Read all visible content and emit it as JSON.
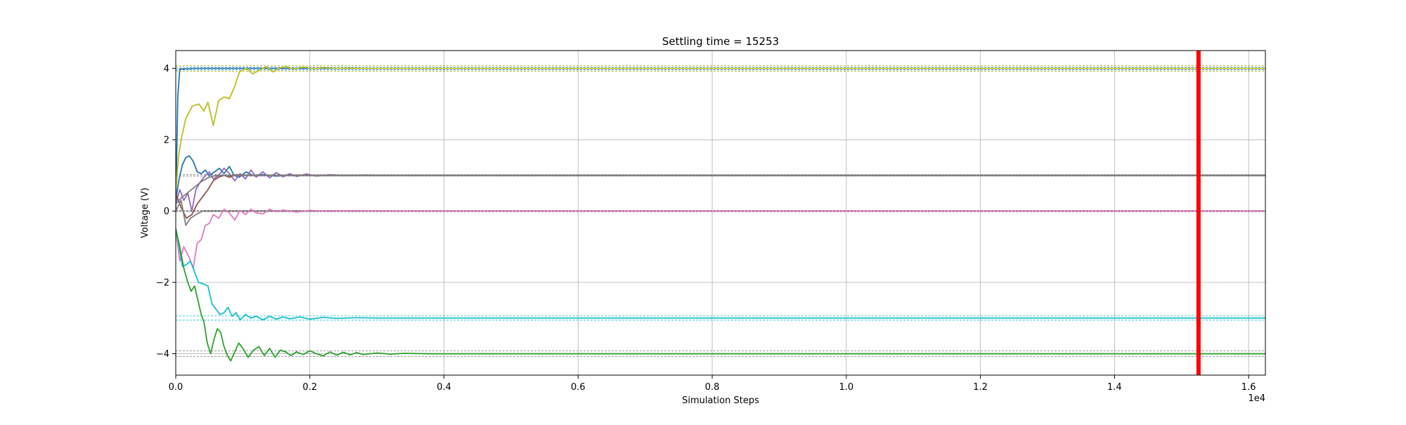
{
  "chart_data": {
    "type": "line",
    "title": "Settling time = 15253",
    "xlabel": "Simulation Steps",
    "ylabel": "Voltage (V)",
    "x_offset_text": "1e4",
    "xlim": [
      0,
      16250
    ],
    "ylim": [
      -4.6,
      4.5
    ],
    "x_ticks": [
      0,
      2000,
      4000,
      6000,
      8000,
      10000,
      12000,
      14000,
      16000
    ],
    "x_tick_labels": [
      "0.0",
      "0.2",
      "0.4",
      "0.6",
      "0.8",
      "1.0",
      "1.2",
      "1.4",
      "1.6"
    ],
    "y_ticks": [
      -4,
      -2,
      0,
      2,
      4
    ],
    "y_tick_labels": [
      "−4",
      "−2",
      "0",
      "2",
      "4"
    ],
    "grid": true,
    "settling_time": 15253,
    "settling_marker_color": "#ff0000",
    "tolerance_bands": [
      {
        "target": 4,
        "band": [
          3.92,
          4.08
        ],
        "color": "#bcbd22"
      },
      {
        "target": 4,
        "band": [
          3.96,
          4.04
        ],
        "color": "#1f77b4"
      },
      {
        "target": 1,
        "band": [
          0.98,
          1.02
        ],
        "color": "#7f7f7f"
      },
      {
        "target": 0,
        "band": [
          -0.02,
          0.02
        ],
        "color": "#7f7f7f"
      },
      {
        "target": -3,
        "band": [
          -3.06,
          -2.94
        ],
        "color": "#17becf"
      },
      {
        "target": -4,
        "band": [
          -4.08,
          -3.92
        ],
        "color": "#7f7f7f"
      }
    ],
    "series": [
      {
        "color": "#1f77b4",
        "target": 4,
        "points": [
          [
            0,
            0
          ],
          [
            30,
            3.2
          ],
          [
            60,
            3.98
          ],
          [
            150,
            3.99
          ],
          [
            300,
            4.0
          ],
          [
            16250,
            4.0
          ]
        ]
      },
      {
        "color": "#bcbd22",
        "target": 4,
        "points": [
          [
            0,
            0.5
          ],
          [
            40,
            1.5
          ],
          [
            80,
            2.0
          ],
          [
            150,
            2.6
          ],
          [
            250,
            2.95
          ],
          [
            350,
            3.0
          ],
          [
            420,
            2.8
          ],
          [
            480,
            3.05
          ],
          [
            560,
            2.4
          ],
          [
            640,
            3.1
          ],
          [
            720,
            3.2
          ],
          [
            800,
            3.15
          ],
          [
            880,
            3.5
          ],
          [
            950,
            3.9
          ],
          [
            1050,
            4.0
          ],
          [
            1150,
            3.85
          ],
          [
            1250,
            3.95
          ],
          [
            1350,
            4.05
          ],
          [
            1450,
            3.9
          ],
          [
            1550,
            4.02
          ],
          [
            1650,
            4.05
          ],
          [
            1750,
            3.98
          ],
          [
            1900,
            4.04
          ],
          [
            2050,
            3.99
          ],
          [
            2200,
            4.02
          ],
          [
            2400,
            4.0
          ],
          [
            2600,
            4.01
          ],
          [
            2800,
            4.0
          ],
          [
            3200,
            4.0
          ],
          [
            16250,
            4.0
          ]
        ]
      },
      {
        "color": "#1f77b4",
        "target": 1,
        "points": [
          [
            0,
            0.3
          ],
          [
            50,
            0.9
          ],
          [
            100,
            1.3
          ],
          [
            150,
            1.5
          ],
          [
            200,
            1.55
          ],
          [
            260,
            1.4
          ],
          [
            320,
            1.1
          ],
          [
            380,
            1.05
          ],
          [
            440,
            1.15
          ],
          [
            500,
            1.0
          ],
          [
            580,
            1.1
          ],
          [
            650,
            1.2
          ],
          [
            720,
            1.05
          ],
          [
            800,
            1.25
          ],
          [
            870,
            1.0
          ],
          [
            950,
            0.95
          ],
          [
            1050,
            1.1
          ],
          [
            1150,
            1.0
          ],
          [
            1300,
            1.02
          ],
          [
            1500,
            0.98
          ],
          [
            1700,
            1.01
          ],
          [
            2000,
            1.0
          ],
          [
            16250,
            1.0
          ]
        ]
      },
      {
        "color": "#9467bd",
        "target": 1,
        "points": [
          [
            0,
            0.2
          ],
          [
            60,
            0.6
          ],
          [
            120,
            0.3
          ],
          [
            180,
            0.5
          ],
          [
            240,
            0.0
          ],
          [
            300,
            0.6
          ],
          [
            360,
            0.8
          ],
          [
            420,
            0.95
          ],
          [
            500,
            1.1
          ],
          [
            560,
            0.9
          ],
          [
            640,
            1.0
          ],
          [
            720,
            1.2
          ],
          [
            800,
            1.05
          ],
          [
            880,
            0.85
          ],
          [
            960,
            1.05
          ],
          [
            1040,
            0.9
          ],
          [
            1120,
            1.15
          ],
          [
            1200,
            0.95
          ],
          [
            1300,
            1.1
          ],
          [
            1400,
            0.93
          ],
          [
            1500,
            1.08
          ],
          [
            1600,
            0.96
          ],
          [
            1700,
            1.05
          ],
          [
            1800,
            0.97
          ],
          [
            1950,
            1.04
          ],
          [
            2100,
            0.98
          ],
          [
            2300,
            1.02
          ],
          [
            2500,
            0.99
          ],
          [
            2800,
            1.01
          ],
          [
            3200,
            1.0
          ],
          [
            16250,
            1.0
          ]
        ]
      },
      {
        "color": "#8c564b",
        "target": 1,
        "points": [
          [
            0,
            0.5
          ],
          [
            80,
            0.1
          ],
          [
            160,
            -0.2
          ],
          [
            240,
            -0.1
          ],
          [
            320,
            0.2
          ],
          [
            400,
            0.4
          ],
          [
            480,
            0.6
          ],
          [
            560,
            0.85
          ],
          [
            640,
            0.95
          ],
          [
            720,
            1.0
          ],
          [
            800,
            0.95
          ],
          [
            900,
            1.02
          ],
          [
            1000,
            1.0
          ],
          [
            16250,
            1.0
          ]
        ]
      },
      {
        "color": "#7f7f7f",
        "target": 1,
        "points": [
          [
            0,
            0.2
          ],
          [
            100,
            0.4
          ],
          [
            200,
            0.55
          ],
          [
            300,
            0.7
          ],
          [
            400,
            0.85
          ],
          [
            500,
            0.95
          ],
          [
            600,
            1.0
          ],
          [
            800,
            1.0
          ],
          [
            16250,
            1.0
          ]
        ]
      },
      {
        "color": "#7f7f7f",
        "target": 0,
        "points": [
          [
            0,
            0.0
          ],
          [
            80,
            0.3
          ],
          [
            150,
            -0.4
          ],
          [
            220,
            -0.2
          ],
          [
            300,
            -0.1
          ],
          [
            400,
            0.0
          ],
          [
            600,
            0.0
          ],
          [
            16250,
            0.0
          ]
        ]
      },
      {
        "color": "#e377c2",
        "target": 0,
        "points": [
          [
            0,
            -0.5
          ],
          [
            60,
            -1.4
          ],
          [
            120,
            -1.0
          ],
          [
            200,
            -1.3
          ],
          [
            260,
            -1.6
          ],
          [
            320,
            -0.9
          ],
          [
            380,
            -0.8
          ],
          [
            440,
            -0.4
          ],
          [
            500,
            -0.35
          ],
          [
            560,
            -0.1
          ],
          [
            640,
            -0.2
          ],
          [
            720,
            0.05
          ],
          [
            800,
            -0.05
          ],
          [
            880,
            -0.25
          ],
          [
            960,
            0.02
          ],
          [
            1040,
            -0.1
          ],
          [
            1120,
            0.05
          ],
          [
            1200,
            -0.05
          ],
          [
            1300,
            -0.08
          ],
          [
            1400,
            0.05
          ],
          [
            1500,
            -0.02
          ],
          [
            1600,
            0.03
          ],
          [
            1800,
            -0.03
          ],
          [
            2000,
            0.02
          ],
          [
            2300,
            -0.01
          ],
          [
            2600,
            0.01
          ],
          [
            3000,
            0.0
          ],
          [
            16250,
            0.0
          ]
        ]
      },
      {
        "color": "#17becf",
        "target": -3,
        "points": [
          [
            0,
            -0.5
          ],
          [
            50,
            -1.0
          ],
          [
            100,
            -1.55
          ],
          [
            160,
            -1.5
          ],
          [
            220,
            -1.4
          ],
          [
            280,
            -1.7
          ],
          [
            340,
            -2.0
          ],
          [
            420,
            -2.05
          ],
          [
            480,
            -2.1
          ],
          [
            540,
            -2.6
          ],
          [
            600,
            -2.75
          ],
          [
            660,
            -2.9
          ],
          [
            720,
            -2.85
          ],
          [
            780,
            -2.7
          ],
          [
            840,
            -2.95
          ],
          [
            900,
            -2.85
          ],
          [
            960,
            -3.05
          ],
          [
            1040,
            -2.9
          ],
          [
            1120,
            -3.0
          ],
          [
            1200,
            -2.95
          ],
          [
            1300,
            -3.05
          ],
          [
            1400,
            -2.95
          ],
          [
            1500,
            -3.03
          ],
          [
            1600,
            -2.97
          ],
          [
            1700,
            -3.02
          ],
          [
            1850,
            -2.97
          ],
          [
            2000,
            -3.03
          ],
          [
            2200,
            -2.98
          ],
          [
            2400,
            -3.01
          ],
          [
            2700,
            -2.99
          ],
          [
            3000,
            -3.0
          ],
          [
            3500,
            -3.0
          ],
          [
            16250,
            -3.0
          ]
        ]
      },
      {
        "color": "#2ca02c",
        "target": -4,
        "points": [
          [
            0,
            -0.5
          ],
          [
            60,
            -1.0
          ],
          [
            120,
            -1.6
          ],
          [
            180,
            -2.0
          ],
          [
            230,
            -2.25
          ],
          [
            280,
            -2.1
          ],
          [
            330,
            -2.5
          ],
          [
            380,
            -2.9
          ],
          [
            420,
            -3.1
          ],
          [
            470,
            -3.7
          ],
          [
            520,
            -4.0
          ],
          [
            570,
            -3.6
          ],
          [
            620,
            -3.3
          ],
          [
            670,
            -3.4
          ],
          [
            720,
            -3.8
          ],
          [
            770,
            -4.05
          ],
          [
            820,
            -4.2
          ],
          [
            880,
            -3.95
          ],
          [
            940,
            -3.7
          ],
          [
            1000,
            -3.85
          ],
          [
            1080,
            -4.1
          ],
          [
            1160,
            -3.9
          ],
          [
            1240,
            -3.8
          ],
          [
            1320,
            -4.05
          ],
          [
            1400,
            -3.85
          ],
          [
            1480,
            -4.1
          ],
          [
            1560,
            -3.9
          ],
          [
            1640,
            -3.95
          ],
          [
            1720,
            -4.05
          ],
          [
            1800,
            -3.95
          ],
          [
            1900,
            -4.02
          ],
          [
            2000,
            -3.92
          ],
          [
            2100,
            -4.0
          ],
          [
            2200,
            -4.06
          ],
          [
            2300,
            -3.95
          ],
          [
            2400,
            -4.04
          ],
          [
            2500,
            -3.96
          ],
          [
            2600,
            -4.03
          ],
          [
            2700,
            -3.97
          ],
          [
            2800,
            -4.02
          ],
          [
            3000,
            -3.98
          ],
          [
            3200,
            -4.01
          ],
          [
            3400,
            -3.99
          ],
          [
            3800,
            -4.0
          ],
          [
            16250,
            -4.0
          ]
        ]
      }
    ]
  }
}
